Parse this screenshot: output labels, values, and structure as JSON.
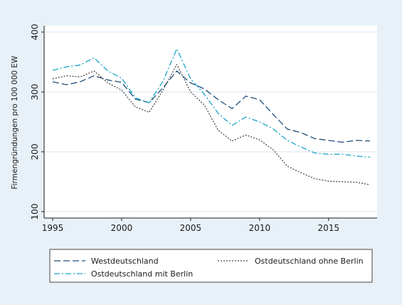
{
  "chart_data": {
    "type": "line",
    "title": "",
    "xlabel": "",
    "ylabel": "Firmengründungen pro 100 000 EW",
    "xlim": [
      1995,
      2018
    ],
    "ylim": [
      100,
      400
    ],
    "xticks": [
      1995,
      2000,
      2005,
      2010,
      2015
    ],
    "yticks": [
      100,
      200,
      300,
      400
    ],
    "grid": "horizontal",
    "legend_position": "bottom",
    "x": [
      1995,
      1996,
      1997,
      1998,
      1999,
      2000,
      2001,
      2002,
      2003,
      2004,
      2005,
      2006,
      2007,
      2008,
      2009,
      2010,
      2011,
      2012,
      2013,
      2014,
      2015,
      2016,
      2017,
      2018
    ],
    "series": [
      {
        "name": "Westdeutschland",
        "color": "#1f4e79",
        "dash": "long-dash",
        "values": [
          317,
          312,
          317,
          327,
          320,
          316,
          288,
          282,
          307,
          335,
          315,
          305,
          287,
          272,
          293,
          287,
          262,
          238,
          232,
          222,
          219,
          216,
          219,
          218
        ]
      },
      {
        "name": "Ostdeutschland ohne Berlin",
        "color": "#4a4a4a",
        "dash": "dotted",
        "values": [
          322,
          327,
          325,
          335,
          315,
          303,
          275,
          266,
          303,
          346,
          300,
          278,
          236,
          218,
          228,
          220,
          203,
          176,
          165,
          155,
          151,
          150,
          149,
          145
        ]
      },
      {
        "name": "Ostdeutschland mit Berlin",
        "color": "#1aa3c8",
        "dash": "dash-dot",
        "values": [
          336,
          342,
          345,
          357,
          335,
          323,
          290,
          282,
          318,
          372,
          322,
          296,
          264,
          244,
          258,
          250,
          238,
          219,
          208,
          198,
          196,
          196,
          193,
          191
        ]
      }
    ]
  }
}
